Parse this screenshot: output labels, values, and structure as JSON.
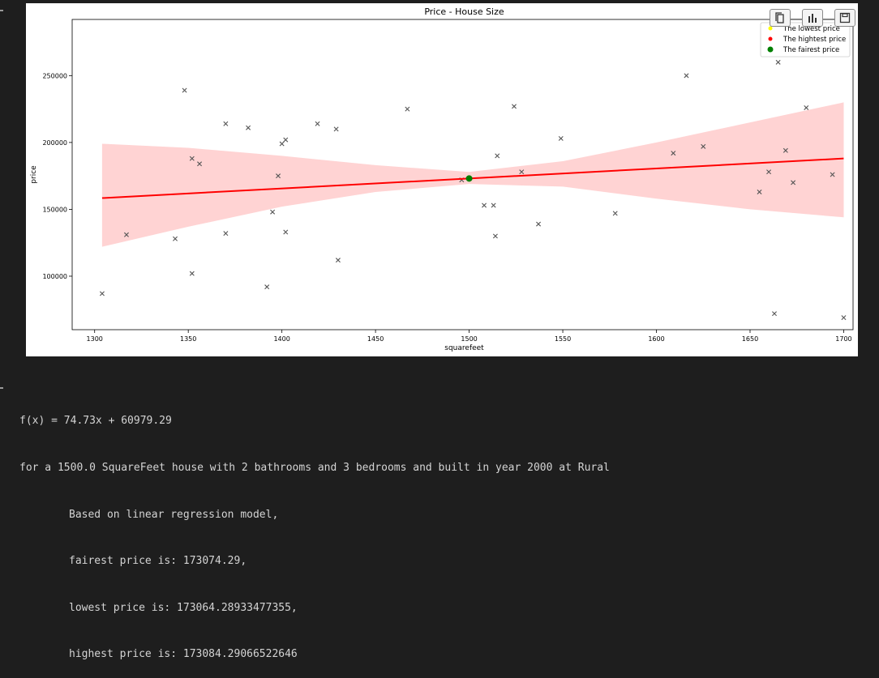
{
  "figure": {
    "toolbar": [
      {
        "name": "copy-icon",
        "label": "copy"
      },
      {
        "name": "bar-chart-icon",
        "label": "chart"
      },
      {
        "name": "save-icon",
        "label": "save"
      }
    ]
  },
  "colors": {
    "band": "#ffd3d3",
    "line": "#ff0000",
    "fair": "#007f00",
    "lowest": "#ffff00",
    "highest": "#ff0000",
    "points": "#555555"
  },
  "chart_data": {
    "type": "scatter",
    "title": "Price - House Size",
    "xlabel": "squarefeet",
    "ylabel": "price",
    "xlim": [
      1288,
      1705
    ],
    "ylim": [
      60000,
      292000
    ],
    "xticks": [
      1300,
      1350,
      1400,
      1450,
      1500,
      1550,
      1600,
      1650,
      1700
    ],
    "yticks": [
      100000,
      150000,
      200000,
      250000
    ],
    "grid": false,
    "legend_position": "top-right",
    "legend": [
      {
        "label": "The lowest price",
        "marker": "dot",
        "color": "#ffff00"
      },
      {
        "label": "The hightest price",
        "marker": "dot",
        "color": "#ff0000"
      },
      {
        "label": "The fairest price",
        "marker": "dot",
        "color": "#007f00"
      }
    ],
    "points": [
      {
        "x": 1304,
        "y": 87000
      },
      {
        "x": 1317,
        "y": 131000
      },
      {
        "x": 1343,
        "y": 128000
      },
      {
        "x": 1348,
        "y": 239000
      },
      {
        "x": 1352,
        "y": 102000
      },
      {
        "x": 1352,
        "y": 188000
      },
      {
        "x": 1356,
        "y": 184000
      },
      {
        "x": 1370,
        "y": 214000
      },
      {
        "x": 1370,
        "y": 132000
      },
      {
        "x": 1382,
        "y": 211000
      },
      {
        "x": 1392,
        "y": 92000
      },
      {
        "x": 1395,
        "y": 148000
      },
      {
        "x": 1398,
        "y": 175000
      },
      {
        "x": 1400,
        "y": 199000
      },
      {
        "x": 1402,
        "y": 202000
      },
      {
        "x": 1402,
        "y": 133000
      },
      {
        "x": 1419,
        "y": 214000
      },
      {
        "x": 1429,
        "y": 210000
      },
      {
        "x": 1430,
        "y": 112000
      },
      {
        "x": 1467,
        "y": 225000
      },
      {
        "x": 1496,
        "y": 172000
      },
      {
        "x": 1508,
        "y": 153000
      },
      {
        "x": 1513,
        "y": 153000
      },
      {
        "x": 1514,
        "y": 130000
      },
      {
        "x": 1515,
        "y": 190000
      },
      {
        "x": 1524,
        "y": 227000
      },
      {
        "x": 1528,
        "y": 178000
      },
      {
        "x": 1537,
        "y": 139000
      },
      {
        "x": 1549,
        "y": 203000
      },
      {
        "x": 1578,
        "y": 147000
      },
      {
        "x": 1609,
        "y": 192000
      },
      {
        "x": 1616,
        "y": 250000
      },
      {
        "x": 1625,
        "y": 197000
      },
      {
        "x": 1655,
        "y": 163000
      },
      {
        "x": 1660,
        "y": 178000
      },
      {
        "x": 1660,
        "y": 281000
      },
      {
        "x": 1663,
        "y": 72000
      },
      {
        "x": 1665,
        "y": 260000
      },
      {
        "x": 1669,
        "y": 194000
      },
      {
        "x": 1673,
        "y": 170000
      },
      {
        "x": 1680,
        "y": 226000
      },
      {
        "x": 1694,
        "y": 176000
      },
      {
        "x": 1700,
        "y": 69000
      }
    ],
    "regression": {
      "x": [
        1304,
        1700
      ],
      "y": [
        158424,
        188014
      ]
    },
    "confidence_band": {
      "x": [
        1304,
        1350,
        1400,
        1450,
        1500,
        1550,
        1600,
        1650,
        1700
      ],
      "upper": [
        199000,
        196000,
        190000,
        183000,
        178000,
        186000,
        200000,
        215000,
        230000
      ],
      "lower": [
        122000,
        137000,
        152000,
        163000,
        169000,
        167000,
        158000,
        150000,
        144000
      ]
    },
    "highlight_points": [
      {
        "series": "The lowest price",
        "x": 1500,
        "y": 173064.29
      },
      {
        "series": "The hightest price",
        "x": 1500,
        "y": 173084.29
      },
      {
        "series": "The fairest price",
        "x": 1500,
        "y": 173074.29
      }
    ]
  },
  "output": {
    "formula": "f(x) = 74.73x + 60979.29",
    "summary": "for a 1500.0 SquareFeet house with 2 bathrooms and 3 bedrooms and built in year 2000 at Rural",
    "model_line": "Based on linear regression model,",
    "fairest": "fairest price is: 173074.29,",
    "lowest": "lowest price is: 173064.28933477355,",
    "highest": "highest price is: 173084.29066522646"
  }
}
